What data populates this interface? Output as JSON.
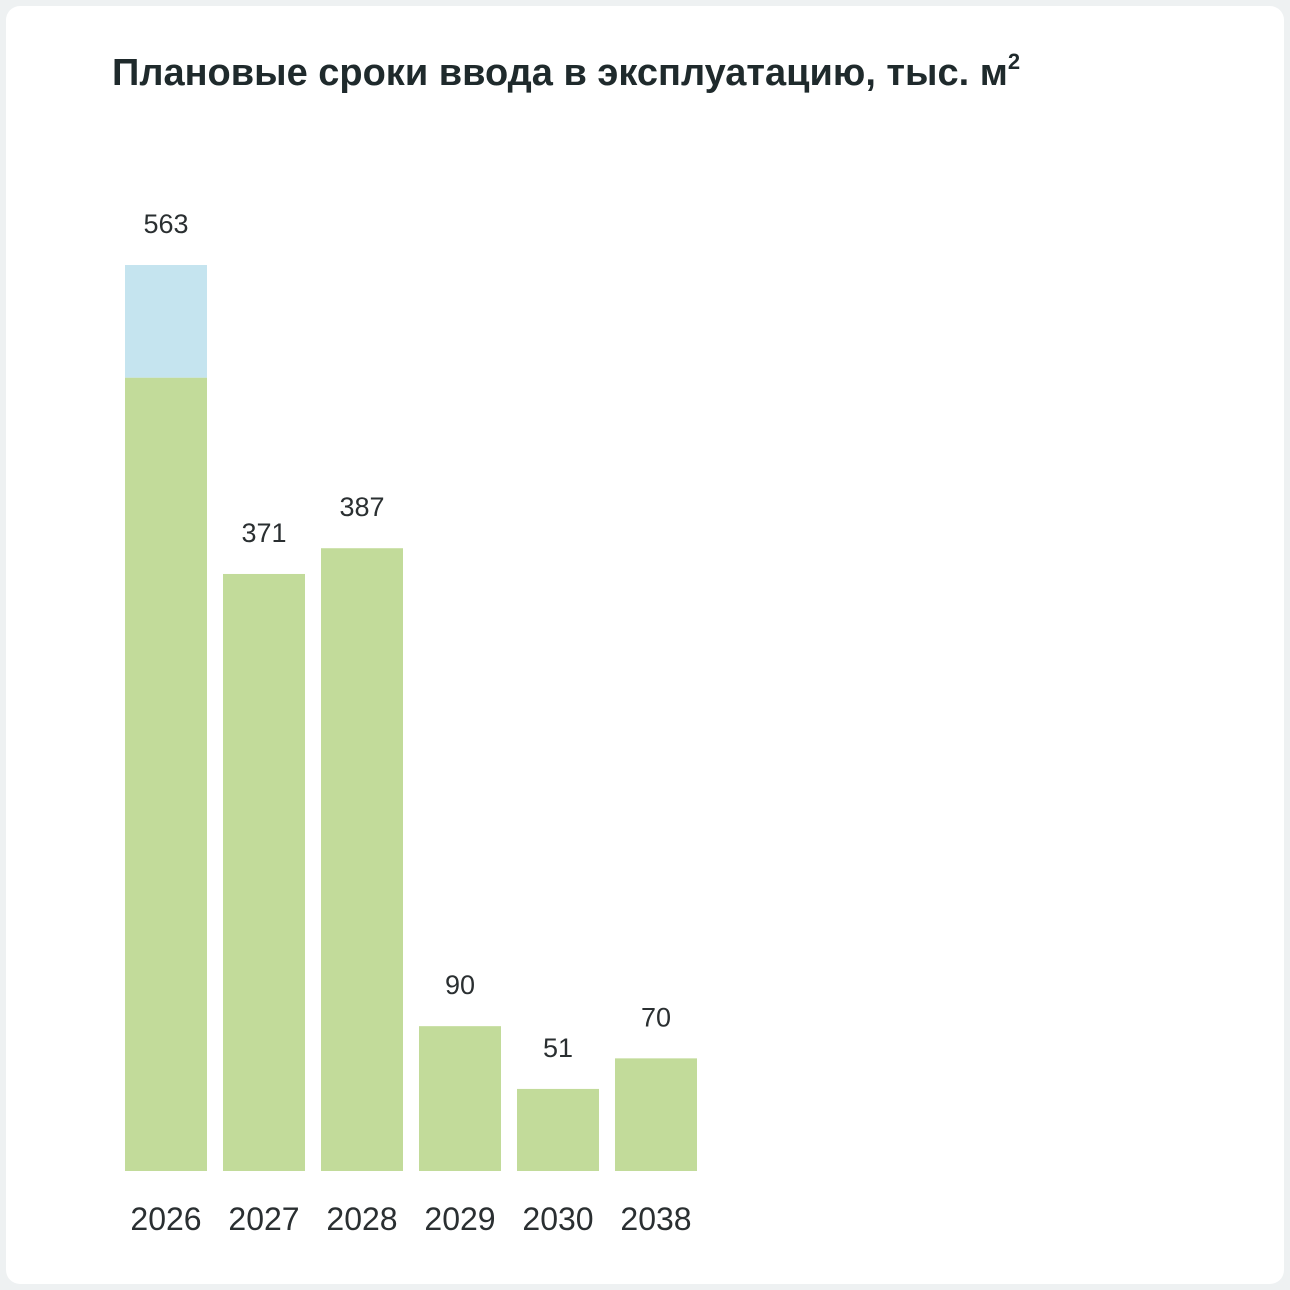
{
  "title": {
    "text": "Плановые сроки ввода в эксплуатацию, тыс. м",
    "superscript": "2"
  },
  "chart_data": {
    "type": "bar",
    "stacked": true,
    "title": "Плановые сроки ввода в эксплуатацию, тыс. м²",
    "categories": [
      "2026",
      "2027",
      "2028",
      "2029",
      "2030",
      "2038"
    ],
    "totals": [
      563,
      371,
      387,
      90,
      51,
      70
    ],
    "series": [
      {
        "values": [
          493,
          371,
          387,
          90,
          51,
          70
        ],
        "color": "#c2db9a"
      },
      {
        "values": [
          70,
          0,
          0,
          0,
          0,
          0
        ],
        "color": "#c5e4ef"
      }
    ],
    "ylim": [
      0,
      563
    ],
    "grid": false,
    "legend": "none"
  }
}
